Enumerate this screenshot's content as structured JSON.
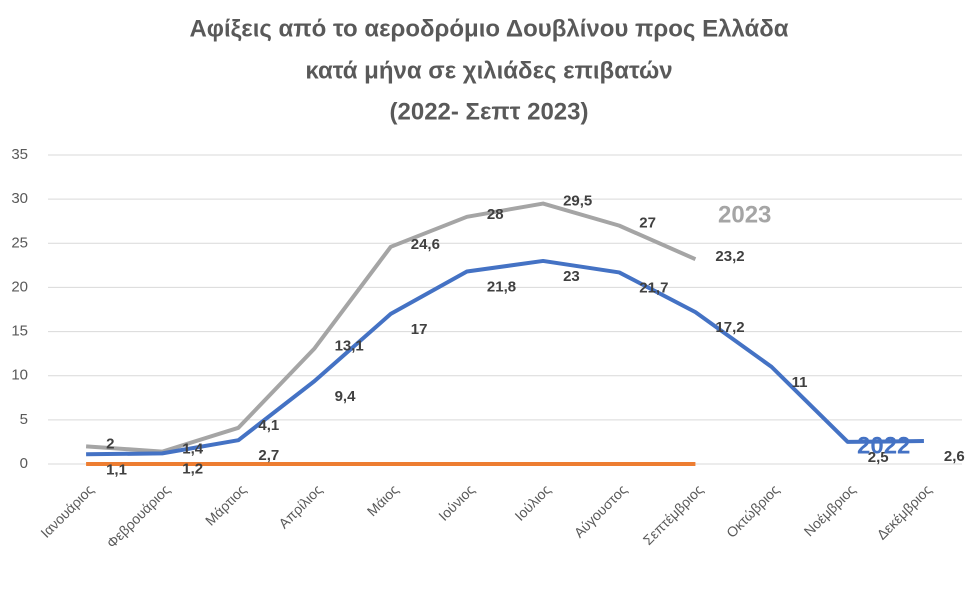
{
  "chart_data": {
    "type": "line",
    "title": [
      "Αφίξεις από το αεροδρόμιο Δουβλίνου προς Ελλάδα",
      "κατά μήνα σε χιλιάδες επιβατών",
      "(2022- Σεπτ 2023)"
    ],
    "categories": [
      "Ιανουάριος",
      "Φεβρουάριος",
      "Μάρτιος",
      "Απρίλιος",
      "Μάιος",
      "Ιούνιος",
      "Ιούλιος",
      "Αύγουστος",
      "Σεπτέμβριος",
      "Οκτώβριος",
      "Νοέμβριος",
      "Δεκέμβριος"
    ],
    "series": [
      {
        "name": "2022",
        "color": "#4472c4",
        "values": [
          1.1,
          1.2,
          2.7,
          9.4,
          17,
          21.8,
          23,
          21.7,
          17.2,
          11,
          2.5,
          2.6
        ],
        "value_labels": [
          "1,1",
          "1,2",
          "2,7",
          "9,4",
          "17",
          "21,8",
          "23",
          "21,7",
          "17,2",
          "11",
          "2,5",
          "2,6"
        ]
      },
      {
        "name": "2023",
        "color": "#a5a5a5",
        "values": [
          2,
          1.4,
          4.1,
          13.1,
          24.6,
          28,
          29.5,
          27,
          23.2,
          null,
          null,
          null
        ],
        "value_labels": [
          "2",
          "1,4",
          "4,1",
          "13,1",
          "24,6",
          "28",
          "29,5",
          "27",
          "23,2",
          null,
          null,
          null
        ]
      },
      {
        "color": "#ed7d31",
        "values": [
          0,
          0,
          0,
          0,
          0,
          0,
          0,
          0,
          0,
          null,
          null,
          null
        ]
      }
    ],
    "ylim": [
      0,
      35
    ],
    "yticks": [
      0,
      5,
      10,
      15,
      20,
      25,
      30,
      35
    ],
    "grid": true
  }
}
